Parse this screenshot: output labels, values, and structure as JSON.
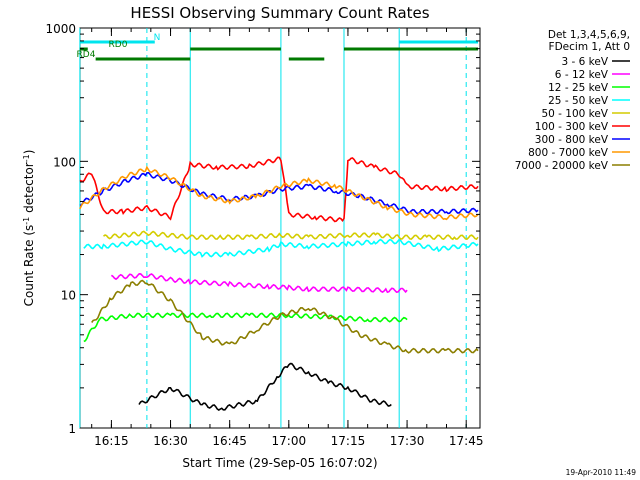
{
  "chart_data": {
    "type": "line",
    "title": "HESSI Observing Summary Count Rates",
    "xlabel": "Start Time (29-Sep-05 16:07:02)",
    "ylabel": "Count Rate (s",
    "ylabel_sup1": "-1",
    "ylabel_mid": " detector",
    "ylabel_sup2": "-1",
    "ylabel_end": ")",
    "timestamp": "19-Apr-2010 11:49",
    "y_scale": "log",
    "ylim": [
      1,
      1000
    ],
    "xlim": [
      "16:07:02",
      "17:48:30"
    ],
    "x_tick_labels": [
      "16:15",
      "16:30",
      "16:45",
      "17:00",
      "17:15",
      "17:30",
      "17:45"
    ],
    "y_tick_labels": [
      "1",
      "10",
      "100",
      "1000"
    ],
    "grid": false,
    "legend_position": "right",
    "legend_header": [
      "Det 1,3,4,5,6,9,",
      "FDecim 1, Att 0"
    ],
    "flags": [
      {
        "name": "N",
        "color": "#00e5ee",
        "segments": [
          [
            "16:07",
            "16:26"
          ],
          [
            "17:28",
            "17:48"
          ]
        ]
      },
      {
        "name": "RD0",
        "color": "#007a00",
        "segments": [
          [
            "16:07",
            "16:09"
          ],
          [
            "16:35",
            "16:58"
          ],
          [
            "17:14",
            "17:48"
          ]
        ]
      },
      {
        "name": "RD4",
        "color": "#007a00",
        "segments": [
          [
            "16:11",
            "16:35"
          ],
          [
            "17:00",
            "17:09"
          ]
        ]
      }
    ],
    "orbit_markers": {
      "solid": [
        "16:07",
        "16:35",
        "16:58",
        "17:14",
        "17:28"
      ],
      "dashed": [
        "16:24",
        "17:45"
      ]
    },
    "series": [
      {
        "name": "3 - 6 keV",
        "color": "#000000",
        "points": [
          [
            "16:22",
            1.5
          ],
          [
            "16:30",
            2.0
          ],
          [
            "16:38",
            1.5
          ],
          [
            "16:43",
            1.4
          ],
          [
            "16:52",
            1.6
          ],
          [
            "16:57",
            2.4
          ],
          [
            "17:00",
            3.0
          ],
          [
            "17:05",
            2.6
          ],
          [
            "17:10",
            2.2
          ],
          [
            "17:15",
            2.0
          ],
          [
            "17:21",
            1.6
          ],
          [
            "17:26",
            1.5
          ]
        ]
      },
      {
        "name": "6 - 12 keV",
        "color": "#ff00ff",
        "points": [
          [
            "16:15",
            13.5
          ],
          [
            "16:24",
            14.0
          ],
          [
            "16:30",
            13.0
          ],
          [
            "16:35",
            12.5
          ],
          [
            "16:45",
            12.0
          ],
          [
            "16:55",
            11.5
          ],
          [
            "17:00",
            11.3
          ],
          [
            "17:05",
            11.0
          ],
          [
            "17:15",
            11.0
          ],
          [
            "17:25",
            10.8
          ],
          [
            "17:30",
            10.8
          ]
        ]
      },
      {
        "name": "12 - 25 keV",
        "color": "#00ff00",
        "points": [
          [
            "16:08",
            4.5
          ],
          [
            "16:12",
            6.5
          ],
          [
            "16:20",
            7.0
          ],
          [
            "16:30",
            7.0
          ],
          [
            "16:40",
            7.0
          ],
          [
            "16:50",
            7.0
          ],
          [
            "17:00",
            7.0
          ],
          [
            "17:10",
            6.8
          ],
          [
            "17:20",
            6.5
          ],
          [
            "17:30",
            6.5
          ]
        ]
      },
      {
        "name": "25 - 50 keV",
        "color": "#00ffff",
        "points": [
          [
            "16:08",
            23
          ],
          [
            "16:13",
            23
          ],
          [
            "16:24",
            25
          ],
          [
            "16:30",
            22
          ],
          [
            "16:38",
            20
          ],
          [
            "16:45",
            20
          ],
          [
            "16:55",
            22
          ],
          [
            "16:58",
            24
          ],
          [
            "17:05",
            23
          ],
          [
            "17:15",
            24
          ],
          [
            "17:22",
            25
          ],
          [
            "17:28",
            25
          ],
          [
            "17:38",
            22
          ],
          [
            "17:48",
            24
          ]
        ]
      },
      {
        "name": "50 - 100 keV",
        "color": "#d4cc00",
        "points": [
          [
            "16:13",
            27
          ],
          [
            "16:24",
            29
          ],
          [
            "16:35",
            27
          ],
          [
            "16:43",
            27
          ],
          [
            "16:50",
            27
          ],
          [
            "16:58",
            28
          ],
          [
            "17:05",
            27
          ],
          [
            "17:15",
            28
          ],
          [
            "17:22",
            28
          ],
          [
            "17:28",
            27
          ],
          [
            "17:35",
            27
          ],
          [
            "17:42",
            27
          ],
          [
            "17:48",
            27
          ]
        ]
      },
      {
        "name": "100 - 300 keV",
        "color": "#ff0000",
        "points": [
          [
            "16:07",
            70
          ],
          [
            "16:10",
            82
          ],
          [
            "16:13",
            42
          ],
          [
            "16:18",
            42
          ],
          [
            "16:24",
            45
          ],
          [
            "16:30",
            38
          ],
          [
            "16:35",
            95
          ],
          [
            "16:42",
            90
          ],
          [
            "16:50",
            92
          ],
          [
            "16:58",
            105
          ],
          [
            "17:00",
            40
          ],
          [
            "17:07",
            38
          ],
          [
            "17:14",
            36
          ],
          [
            "17:15",
            105
          ],
          [
            "17:22",
            90
          ],
          [
            "17:28",
            80
          ],
          [
            "17:30",
            65
          ],
          [
            "17:40",
            62
          ],
          [
            "17:48",
            65
          ]
        ]
      },
      {
        "name": "300 - 800 keV",
        "color": "#0000ff",
        "points": [
          [
            "16:07",
            48
          ],
          [
            "16:13",
            60
          ],
          [
            "16:19",
            72
          ],
          [
            "16:24",
            80
          ],
          [
            "16:30",
            72
          ],
          [
            "16:38",
            57
          ],
          [
            "16:45",
            52
          ],
          [
            "16:52",
            55
          ],
          [
            "16:58",
            62
          ],
          [
            "17:05",
            65
          ],
          [
            "17:12",
            60
          ],
          [
            "17:18",
            55
          ],
          [
            "17:25",
            48
          ],
          [
            "17:31",
            42
          ],
          [
            "17:40",
            42
          ],
          [
            "17:48",
            43
          ]
        ]
      },
      {
        "name": "800 - 7000 keV",
        "color": "#ff9900",
        "points": [
          [
            "16:07",
            45
          ],
          [
            "16:13",
            62
          ],
          [
            "16:19",
            78
          ],
          [
            "16:24",
            88
          ],
          [
            "16:30",
            75
          ],
          [
            "16:38",
            55
          ],
          [
            "16:45",
            50
          ],
          [
            "16:52",
            55
          ],
          [
            "16:58",
            65
          ],
          [
            "17:05",
            72
          ],
          [
            "17:12",
            65
          ],
          [
            "17:18",
            55
          ],
          [
            "17:25",
            45
          ],
          [
            "17:31",
            40
          ],
          [
            "17:40",
            38
          ],
          [
            "17:48",
            40
          ]
        ]
      },
      {
        "name": "7000 - 20000 keV",
        "color": "#8b7e00",
        "points": [
          [
            "16:10",
            6.0
          ],
          [
            "16:15",
            9.5
          ],
          [
            "16:20",
            12.0
          ],
          [
            "16:24",
            12.5
          ],
          [
            "16:30",
            9.0
          ],
          [
            "16:38",
            4.8
          ],
          [
            "16:45",
            4.2
          ],
          [
            "16:52",
            5.5
          ],
          [
            "16:58",
            7.0
          ],
          [
            "17:05",
            8.0
          ],
          [
            "17:12",
            6.5
          ],
          [
            "17:18",
            5.0
          ],
          [
            "17:25",
            4.2
          ],
          [
            "17:30",
            3.8
          ],
          [
            "17:40",
            3.8
          ],
          [
            "17:48",
            3.8
          ]
        ]
      }
    ]
  }
}
